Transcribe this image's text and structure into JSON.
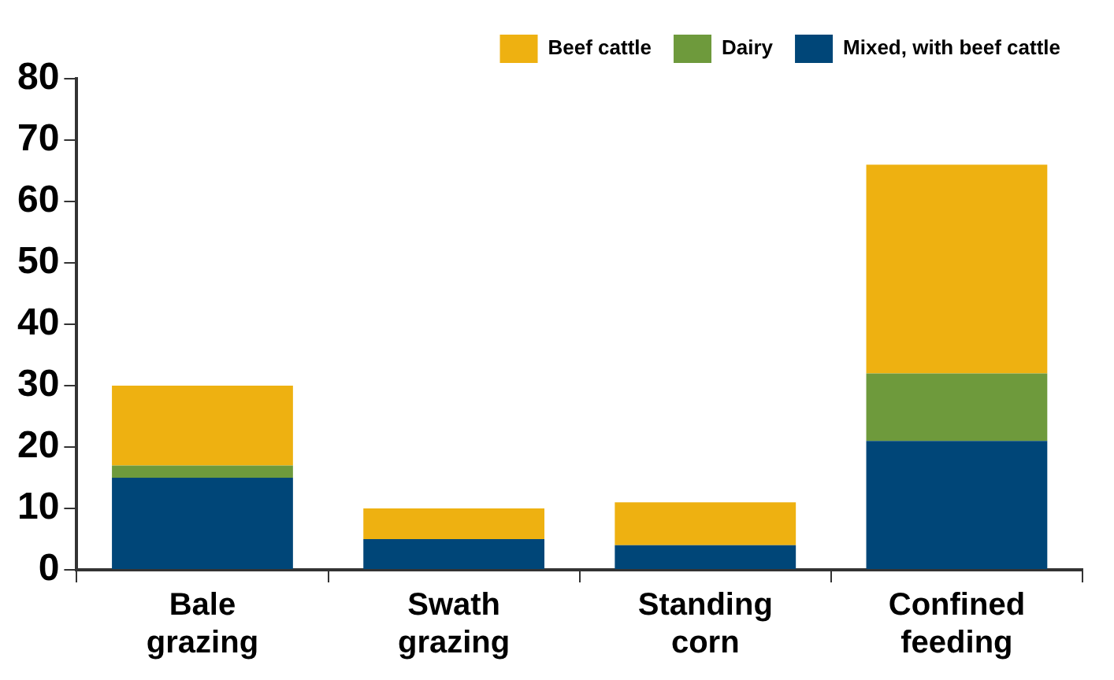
{
  "chart_data": {
    "type": "bar",
    "stacked": true,
    "categories": [
      "Bale grazing",
      "Swath grazing",
      "Standing corn",
      "Confined feeding"
    ],
    "series": [
      {
        "name": "Mixed, with beef cattle",
        "color": "#004678",
        "values": [
          15,
          5,
          4,
          21
        ]
      },
      {
        "name": "Dairy",
        "color": "#6e9a3c",
        "values": [
          2,
          0,
          0,
          11
        ]
      },
      {
        "name": "Beef cattle",
        "color": "#eeb111",
        "values": [
          13,
          5,
          7,
          34
        ]
      }
    ],
    "ylim": [
      0,
      80
    ],
    "yticks": [
      0,
      10,
      20,
      30,
      40,
      50,
      60,
      70,
      80
    ],
    "grid": false,
    "legend": "top right"
  }
}
